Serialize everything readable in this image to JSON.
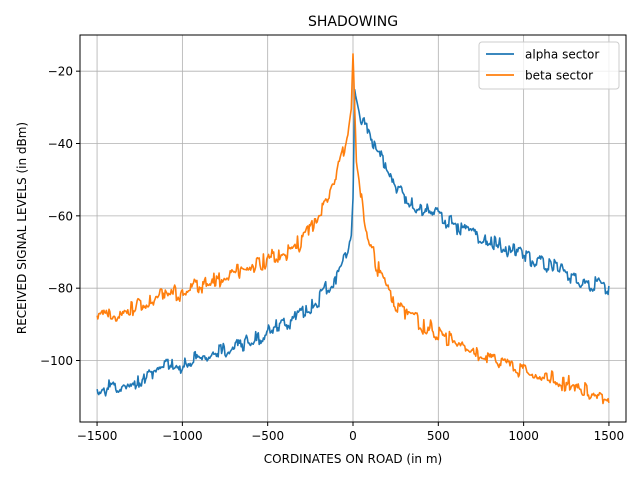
{
  "chart_data": {
    "type": "line",
    "title": "SHADOWING",
    "xlabel": "CORDINATES ON ROAD (in m)",
    "ylabel": "RECEIVED SIGNAL LEVELS (in dBm)",
    "xlim": [
      -1600,
      1600
    ],
    "ylim": [
      -117,
      -10
    ],
    "xticks": [
      -1500,
      -1000,
      -500,
      0,
      500,
      1000,
      1500
    ],
    "xtick_labels": [
      "−1500",
      "−1000",
      "−500",
      "0",
      "500",
      "1000",
      "1500"
    ],
    "yticks": [
      -100,
      -80,
      -60,
      -40,
      -20
    ],
    "ytick_labels": [
      "−100",
      "−80",
      "−60",
      "−40",
      "−20"
    ],
    "grid": true,
    "legend_position": "top-right",
    "series": [
      {
        "name": "alpha sector",
        "color": "#1f77b4",
        "x": [
          -1500,
          -1400,
          -1300,
          -1200,
          -1100,
          -1000,
          -900,
          -800,
          -700,
          -600,
          -500,
          -400,
          -300,
          -250,
          -200,
          -150,
          -100,
          -60,
          -30,
          -10,
          0,
          10,
          20,
          40,
          60,
          100,
          150,
          200,
          250,
          300,
          400,
          500,
          600,
          700,
          800,
          900,
          1000,
          1100,
          1200,
          1300,
          1400,
          1500
        ],
        "y": [
          -108,
          -107,
          -106,
          -104,
          -102,
          -101,
          -99,
          -98,
          -96,
          -95,
          -92,
          -90,
          -87,
          -85,
          -83,
          -80,
          -77,
          -73,
          -70,
          -65,
          -55,
          -25,
          -28,
          -32,
          -35,
          -38,
          -43,
          -47,
          -52,
          -55,
          -58,
          -60,
          -63,
          -65,
          -67,
          -69,
          -71,
          -73,
          -75,
          -77,
          -79,
          -80
        ]
      },
      {
        "name": "beta sector",
        "color": "#ff7f0e",
        "x": [
          -1500,
          -1400,
          -1300,
          -1200,
          -1100,
          -1000,
          -900,
          -800,
          -700,
          -600,
          -500,
          -400,
          -300,
          -250,
          -200,
          -150,
          -100,
          -60,
          -30,
          -10,
          0,
          10,
          20,
          40,
          60,
          100,
          150,
          200,
          250,
          300,
          400,
          500,
          600,
          700,
          800,
          900,
          1000,
          1100,
          1200,
          1300,
          1400,
          1500
        ],
        "y": [
          -88,
          -87,
          -86,
          -84,
          -82,
          -81,
          -79,
          -78,
          -76,
          -75,
          -72,
          -70,
          -67,
          -64,
          -60,
          -56,
          -50,
          -43,
          -38,
          -30,
          -15,
          -30,
          -45,
          -52,
          -60,
          -68,
          -75,
          -80,
          -84,
          -87,
          -90,
          -92,
          -95,
          -97,
          -99,
          -101,
          -103,
          -104,
          -106,
          -107,
          -109,
          -110
        ]
      }
    ]
  }
}
